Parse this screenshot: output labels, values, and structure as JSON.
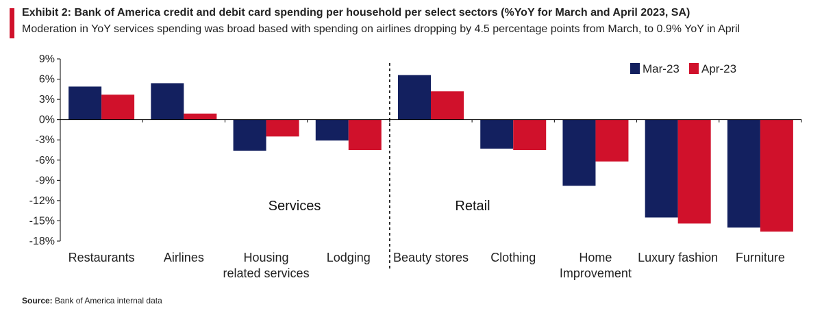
{
  "header": {
    "title": "Exhibit 2: Bank of America credit and debit card spending per household per select sectors (%YoY for March and April 2023, SA)",
    "subtitle": "Moderation in YoY services spending was broad based with spending on airlines dropping by 4.5 percentage points from March, to 0.9% YoY in April"
  },
  "source": {
    "label": "Source:",
    "text": "Bank of America internal data"
  },
  "colors": {
    "accent": "#d0112b",
    "mar": "#13205f",
    "apr": "#d0112b",
    "axis": "#000000"
  },
  "chart_data": {
    "type": "bar",
    "categories": [
      "Restaurants",
      "Airlines",
      "Housing related services",
      "Lodging",
      "Beauty stores",
      "Clothing",
      "Home Improvement",
      "Luxury fashion",
      "Furniture"
    ],
    "category_lines": [
      [
        "Restaurants"
      ],
      [
        "Airlines"
      ],
      [
        "Housing",
        "related services"
      ],
      [
        "Lodging"
      ],
      [
        "Beauty stores"
      ],
      [
        "Clothing"
      ],
      [
        "Home",
        "Improvement"
      ],
      [
        "Luxury fashion"
      ],
      [
        "Furniture"
      ]
    ],
    "series": [
      {
        "name": "Mar-23",
        "values": [
          4.9,
          5.4,
          -4.6,
          -3.1,
          6.6,
          -4.3,
          -9.8,
          -14.5,
          -16.0
        ]
      },
      {
        "name": "Apr-23",
        "values": [
          3.7,
          0.9,
          -2.5,
          -4.5,
          4.2,
          -4.5,
          -6.2,
          -15.4,
          -16.6
        ]
      }
    ],
    "groups": [
      {
        "label": "Services",
        "categories": [
          0,
          1,
          2,
          3
        ]
      },
      {
        "label": "Retail",
        "categories": [
          4,
          5,
          6,
          7,
          8
        ]
      }
    ],
    "ylim": [
      -18,
      9
    ],
    "yticks": [
      9,
      6,
      3,
      0,
      -3,
      -6,
      -9,
      -12,
      -15,
      -18
    ],
    "ytick_labels": [
      "9%",
      "6%",
      "3%",
      "0%",
      "-3%",
      "-6%",
      "-9%",
      "-12%",
      "-15%",
      "-18%"
    ],
    "legend_position": "top-right",
    "divider_after_category": 3
  }
}
